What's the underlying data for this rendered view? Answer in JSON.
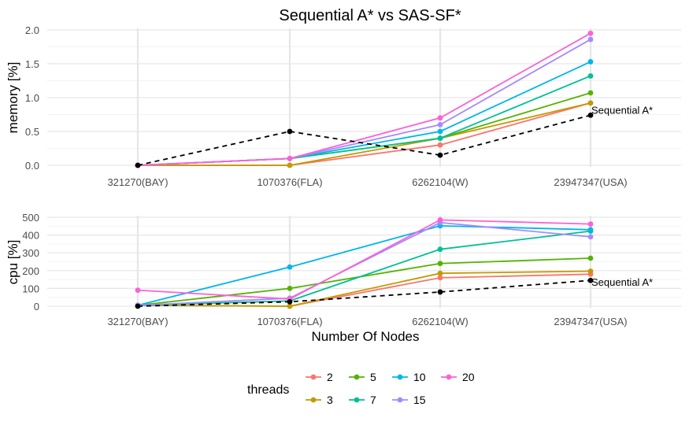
{
  "title": "Sequential A* vs SAS-SF*",
  "shared_xlabel": "Number Of Nodes",
  "legend": {
    "title": "threads",
    "items": [
      {
        "label": "2",
        "color": "#F8766D"
      },
      {
        "label": "3",
        "color": "#C49A00"
      },
      {
        "label": "5",
        "color": "#53B400"
      },
      {
        "label": "7",
        "color": "#00C094"
      },
      {
        "label": "10",
        "color": "#00B6EB"
      },
      {
        "label": "15",
        "color": "#A58AFF"
      },
      {
        "label": "20",
        "color": "#FB61D7"
      }
    ]
  },
  "chart_data": [
    {
      "type": "line",
      "ylabel": "memory [%]",
      "categories": [
        "321270(BAY)",
        "1070376(FLA)",
        "6262104(W)",
        "23947347(USA)"
      ],
      "ylim": [
        0,
        2.0
      ],
      "yticks": [
        "0.0",
        "0.5",
        "1.0",
        "1.5",
        "2.0"
      ],
      "grid": true,
      "series": [
        {
          "name": "2",
          "color": "#F8766D",
          "values": [
            0,
            0,
            0.3,
            0.92
          ]
        },
        {
          "name": "3",
          "color": "#C49A00",
          "values": [
            0,
            0,
            0.4,
            0.92
          ]
        },
        {
          "name": "5",
          "color": "#53B400",
          "values": [
            0,
            0.1,
            0.4,
            1.07
          ]
        },
        {
          "name": "7",
          "color": "#00C094",
          "values": [
            0,
            0.1,
            0.4,
            1.32
          ]
        },
        {
          "name": "10",
          "color": "#00B6EB",
          "values": [
            0,
            0.1,
            0.5,
            1.53
          ]
        },
        {
          "name": "15",
          "color": "#A58AFF",
          "values": [
            0,
            0.1,
            0.6,
            1.86
          ]
        },
        {
          "name": "20",
          "color": "#FB61D7",
          "values": [
            0,
            0.1,
            0.7,
            1.95
          ]
        }
      ],
      "reference": {
        "label": "Sequential A*",
        "color": "#000000",
        "dashed": true,
        "values": [
          0,
          0.5,
          0.15,
          0.74
        ]
      }
    },
    {
      "type": "line",
      "ylabel": "cpu [%]",
      "xlabel": "Number Of Nodes",
      "categories": [
        "321270(BAY)",
        "1070376(FLA)",
        "6262104(W)",
        "23947347(USA)"
      ],
      "ylim": [
        0,
        500
      ],
      "yticks": [
        "0",
        "100",
        "200",
        "300",
        "400",
        "500"
      ],
      "grid": true,
      "series": [
        {
          "name": "2",
          "color": "#F8766D",
          "values": [
            5,
            0,
            160,
            180
          ]
        },
        {
          "name": "3",
          "color": "#C49A00",
          "values": [
            5,
            0,
            185,
            197
          ]
        },
        {
          "name": "5",
          "color": "#53B400",
          "values": [
            5,
            100,
            240,
            270
          ]
        },
        {
          "name": "7",
          "color": "#00C094",
          "values": [
            5,
            30,
            320,
            422
          ]
        },
        {
          "name": "10",
          "color": "#00B6EB",
          "values": [
            5,
            220,
            452,
            430
          ]
        },
        {
          "name": "15",
          "color": "#A58AFF",
          "values": [
            5,
            45,
            470,
            390
          ]
        },
        {
          "name": "20",
          "color": "#FB61D7",
          "values": [
            90,
            40,
            485,
            462
          ]
        }
      ],
      "reference": {
        "label": "Sequential A*",
        "color": "#000000",
        "dashed": true,
        "values": [
          0,
          25,
          80,
          145
        ]
      }
    }
  ]
}
